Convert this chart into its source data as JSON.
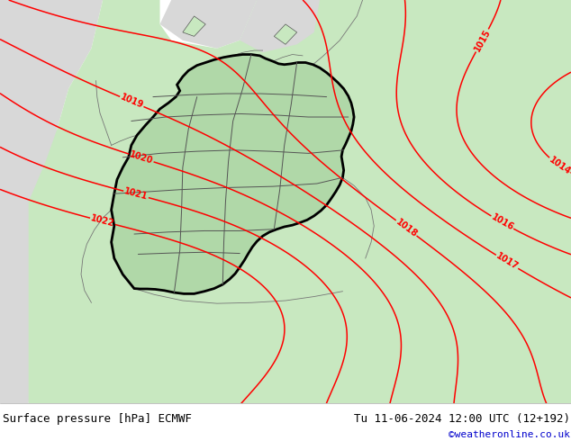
{
  "title_left": "Surface pressure [hPa] ECMWF",
  "title_right": "Tu 11-06-2024 12:00 UTC (12+192)",
  "credit": "©weatheronline.co.uk",
  "credit_color": "#0000cc",
  "land_color": "#c8e8c0",
  "sea_color": "#d8d8d8",
  "germany_fill": "#b0d8a8",
  "border_color": "#000000",
  "state_border_color": "#555555",
  "contour_color": "#ff0000",
  "footer_text_color": "#000000",
  "contour_linewidth": 1.1,
  "contour_levels": [
    1014,
    1015,
    1016,
    1017,
    1018,
    1019,
    1020,
    1021,
    1022
  ],
  "figsize": [
    6.34,
    4.9
  ],
  "dpi": 100
}
